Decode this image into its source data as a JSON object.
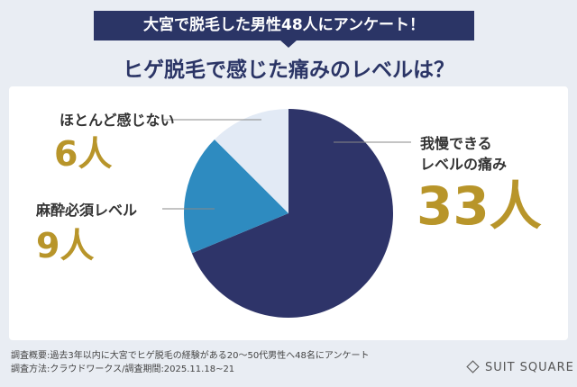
{
  "header": {
    "banner": "大宮で脱毛した男性48人にアンケート！",
    "logo": "SUIT SQUARE"
  },
  "chart_data": {
    "type": "pie",
    "title": "ヒゲ脱毛で感じた痛みのレベルは？",
    "categories": [
      "我慢できる\nレベルの痛み",
      "麻酔必須レベル",
      "ほとんど感じない"
    ],
    "values": [
      33,
      9,
      6
    ],
    "value_labels": [
      "33人",
      "9人",
      "6人"
    ],
    "colors": [
      "#2e3469",
      "#2e8bc0",
      "#e2eaf5"
    ]
  },
  "footer": {
    "lines": [
      "調査概要:過去3年以内に大宮でヒゲ脱毛の経験がある20～50代男性へ48名にアンケート",
      "調査方法:クラウドワークス/調査期間:2025.11.18~21"
    ]
  }
}
